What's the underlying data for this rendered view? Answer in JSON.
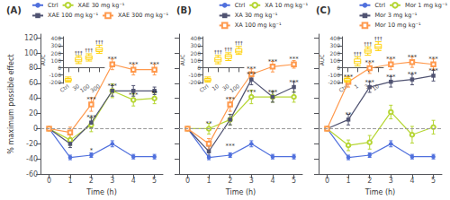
{
  "chart_data": [
    {
      "type": "line",
      "title": "(A)",
      "xlabel": "Time (h)",
      "ylabel": "% maximum possible effect",
      "x": [
        0,
        1,
        2,
        3,
        4,
        5
      ],
      "series": [
        {
          "name": "Ctrl",
          "marker": "circle",
          "values": [
            0,
            -38,
            -35,
            -20,
            -37,
            -37
          ],
          "errors": [
            1,
            3,
            3,
            4,
            3,
            3
          ]
        },
        {
          "name": "XAE 30 mg kg⁻¹",
          "marker": "open-circle",
          "values": [
            0,
            -15,
            5,
            50,
            38,
            40
          ],
          "errors": [
            1,
            7,
            9,
            9,
            8,
            7
          ]
        },
        {
          "name": "XAE 100 mg kg⁻¹",
          "marker": "square",
          "values": [
            0,
            -20,
            8,
            50,
            50,
            50
          ],
          "errors": [
            1,
            5,
            7,
            7,
            7,
            5
          ]
        },
        {
          "name": "XAE 300 mg kg⁻¹",
          "marker": "open-square",
          "values": [
            0,
            -5,
            32,
            85,
            78,
            78
          ],
          "errors": [
            1,
            7,
            9,
            7,
            7,
            7
          ]
        }
      ],
      "annotations": [
        {
          "x": 2,
          "y": -35,
          "text": "*"
        },
        {
          "x": 2,
          "y": 8,
          "text": "***"
        },
        {
          "x": 2,
          "y": 32,
          "text": "***"
        },
        {
          "x": 3,
          "y": 50,
          "text": "***"
        },
        {
          "x": 3,
          "y": 85,
          "text": "***"
        },
        {
          "x": 4,
          "y": 38,
          "text": "***"
        },
        {
          "x": 4,
          "y": 78,
          "text": "***"
        },
        {
          "x": 5,
          "y": 40,
          "text": "**"
        },
        {
          "x": 5,
          "y": 78,
          "text": "***"
        }
      ],
      "hlines": [
        0
      ],
      "xlim": [
        -0.4,
        5.4
      ],
      "xticks": [
        0,
        1,
        2,
        3,
        4,
        5
      ],
      "ylim": [
        -60,
        125
      ],
      "yticks": [
        -60,
        -40,
        -20,
        0,
        20,
        40,
        60,
        80,
        100,
        120
      ],
      "grid": false,
      "legend": "upper right",
      "inset": {
        "type": "box",
        "ylabel": "AUC",
        "categories": [
          "Ctrl",
          "30",
          "100",
          "300"
        ],
        "whisker_low": [
          -198,
          55,
          90,
          195
        ],
        "q1": [
          -182,
          80,
          112,
          218
        ],
        "median": [
          -168,
          105,
          135,
          240
        ],
        "q3": [
          -148,
          138,
          162,
          272
        ],
        "whisker_high": [
          -128,
          162,
          188,
          305
        ],
        "annotations": [
          {
            "x": "30",
            "y": 162,
            "text": "†††"
          },
          {
            "x": "100",
            "y": 188,
            "text": "†††"
          },
          {
            "x": "300",
            "y": 305,
            "text": "†††"
          }
        ],
        "ylim": [
          -215,
          420
        ],
        "yticks": [
          -200,
          -100,
          0,
          100,
          200,
          300,
          400
        ],
        "grid": false
      }
    },
    {
      "type": "line",
      "title": "(B)",
      "xlabel": "Time (h)",
      "x": [
        0,
        1,
        2,
        3,
        4,
        5
      ],
      "series": [
        {
          "name": "Ctrl",
          "marker": "circle",
          "values": [
            0,
            -38,
            -35,
            -20,
            -37,
            -37
          ],
          "errors": [
            1,
            3,
            3,
            4,
            3,
            3
          ]
        },
        {
          "name": "XA 10 mg kg⁻¹",
          "marker": "open-circle",
          "values": [
            0,
            0,
            12,
            42,
            42,
            42
          ],
          "errors": [
            1,
            7,
            7,
            9,
            7,
            7
          ]
        },
        {
          "name": "XA 30 mg kg⁻¹",
          "marker": "square",
          "values": [
            0,
            -30,
            12,
            65,
            42,
            55
          ],
          "errors": [
            1,
            7,
            7,
            7,
            7,
            7
          ]
        },
        {
          "name": "XA 100 mg kg⁻¹",
          "marker": "open-square",
          "values": [
            0,
            -20,
            32,
            72,
            82,
            85
          ],
          "errors": [
            1,
            7,
            9,
            7,
            7,
            5
          ]
        }
      ],
      "annotations": [
        {
          "x": 1,
          "y": 0,
          "text": "**"
        },
        {
          "x": 2,
          "y": -30,
          "text": "***"
        },
        {
          "x": 2,
          "y": 32,
          "text": "***"
        },
        {
          "x": 3,
          "y": 65,
          "text": "***"
        },
        {
          "x": 3,
          "y": 42,
          "text": "***"
        },
        {
          "x": 3,
          "y": 72,
          "text": "***"
        },
        {
          "x": 4,
          "y": 42,
          "text": "***"
        },
        {
          "x": 4,
          "y": 82,
          "text": "***"
        },
        {
          "x": 5,
          "y": 55,
          "text": "***"
        },
        {
          "x": 5,
          "y": 85,
          "text": "***"
        }
      ],
      "hlines": [
        0
      ],
      "xlim": [
        -0.4,
        5.4
      ],
      "xticks": [
        0,
        1,
        2,
        3,
        4,
        5
      ],
      "ylim": [
        -60,
        125
      ],
      "yticks": [
        -60,
        -40,
        -20,
        0,
        20,
        40,
        60,
        80,
        100,
        120
      ],
      "tick_labels": "x",
      "grid": false,
      "legend": "upper right",
      "inset": {
        "type": "box",
        "ylabel": "AUC",
        "categories": [
          "Ctrl",
          "10",
          "30",
          "100"
        ],
        "whisker_low": [
          -198,
          52,
          96,
          180
        ],
        "q1": [
          -182,
          78,
          122,
          200
        ],
        "median": [
          -168,
          105,
          152,
          222
        ],
        "q3": [
          -148,
          138,
          178,
          258
        ],
        "whisker_high": [
          -128,
          165,
          202,
          288
        ],
        "annotations": [
          {
            "x": "10",
            "y": 165,
            "text": "†††"
          },
          {
            "x": "30",
            "y": 202,
            "text": "†††"
          },
          {
            "x": "100",
            "y": 288,
            "text": "†††"
          }
        ],
        "ylim": [
          -215,
          420
        ],
        "yticks": [
          -200,
          -100,
          0,
          100,
          200,
          300,
          400
        ],
        "grid": false
      }
    },
    {
      "type": "line",
      "title": "(C)",
      "xlabel": "Time (h)",
      "x": [
        0,
        1,
        2,
        3,
        4,
        5
      ],
      "series": [
        {
          "name": "Ctrl",
          "marker": "circle",
          "values": [
            0,
            -38,
            -35,
            -20,
            -37,
            -37
          ],
          "errors": [
            1,
            3,
            3,
            4,
            3,
            3
          ]
        },
        {
          "name": "Mor 1 mg kg⁻¹",
          "marker": "open-circle",
          "values": [
            0,
            -22,
            -18,
            22,
            -8,
            2
          ],
          "errors": [
            1,
            7,
            9,
            9,
            11,
            9
          ]
        },
        {
          "name": "Mor 3 mg kg⁻¹",
          "marker": "square",
          "values": [
            0,
            12,
            55,
            62,
            65,
            70
          ],
          "errors": [
            1,
            7,
            7,
            7,
            7,
            7
          ]
        },
        {
          "name": "Mor 10 mg kg⁻¹",
          "marker": "open-square",
          "values": [
            0,
            62,
            80,
            85,
            88,
            85
          ],
          "errors": [
            1,
            7,
            7,
            7,
            7,
            7
          ]
        }
      ],
      "annotations": [
        {
          "x": 1,
          "y": 12,
          "text": "**"
        },
        {
          "x": 1,
          "y": 62,
          "text": "***"
        },
        {
          "x": 2,
          "y": 55,
          "text": "***"
        },
        {
          "x": 2,
          "y": 80,
          "text": "***"
        },
        {
          "x": 3,
          "y": 62,
          "text": "***"
        },
        {
          "x": 3,
          "y": 85,
          "text": "***"
        },
        {
          "x": 4,
          "y": 65,
          "text": "***"
        },
        {
          "x": 4,
          "y": 88,
          "text": "***"
        },
        {
          "x": 5,
          "y": 70,
          "text": "***"
        },
        {
          "x": 5,
          "y": 85,
          "text": "***"
        }
      ],
      "hlines": [
        0
      ],
      "xlim": [
        -0.4,
        5.4
      ],
      "xticks": [
        0,
        1,
        2,
        3,
        4,
        5
      ],
      "ylim": [
        -60,
        125
      ],
      "yticks": [
        -60,
        -40,
        -20,
        0,
        20,
        40,
        60,
        80,
        100,
        120
      ],
      "tick_labels": "x",
      "grid": false,
      "legend": "upper right",
      "inset": {
        "type": "box",
        "ylabel": "AUC",
        "categories": [
          "Ctrl",
          "1",
          "3",
          "10"
        ],
        "whisker_low": [
          -198,
          22,
          168,
          232
        ],
        "q1": [
          -182,
          52,
          198,
          258
        ],
        "median": [
          -168,
          82,
          225,
          282
        ],
        "q3": [
          -148,
          118,
          252,
          318
        ],
        "whisker_high": [
          -128,
          148,
          282,
          352
        ],
        "annotations": [
          {
            "x": "1",
            "y": 148,
            "text": "†††"
          },
          {
            "x": "3",
            "y": 282,
            "text": "†††"
          },
          {
            "x": "10",
            "y": 352,
            "text": "†††"
          }
        ],
        "ylim": [
          -215,
          420
        ],
        "yticks": [
          -200,
          -100,
          0,
          100,
          200,
          300,
          400
        ],
        "grid": false
      }
    }
  ]
}
